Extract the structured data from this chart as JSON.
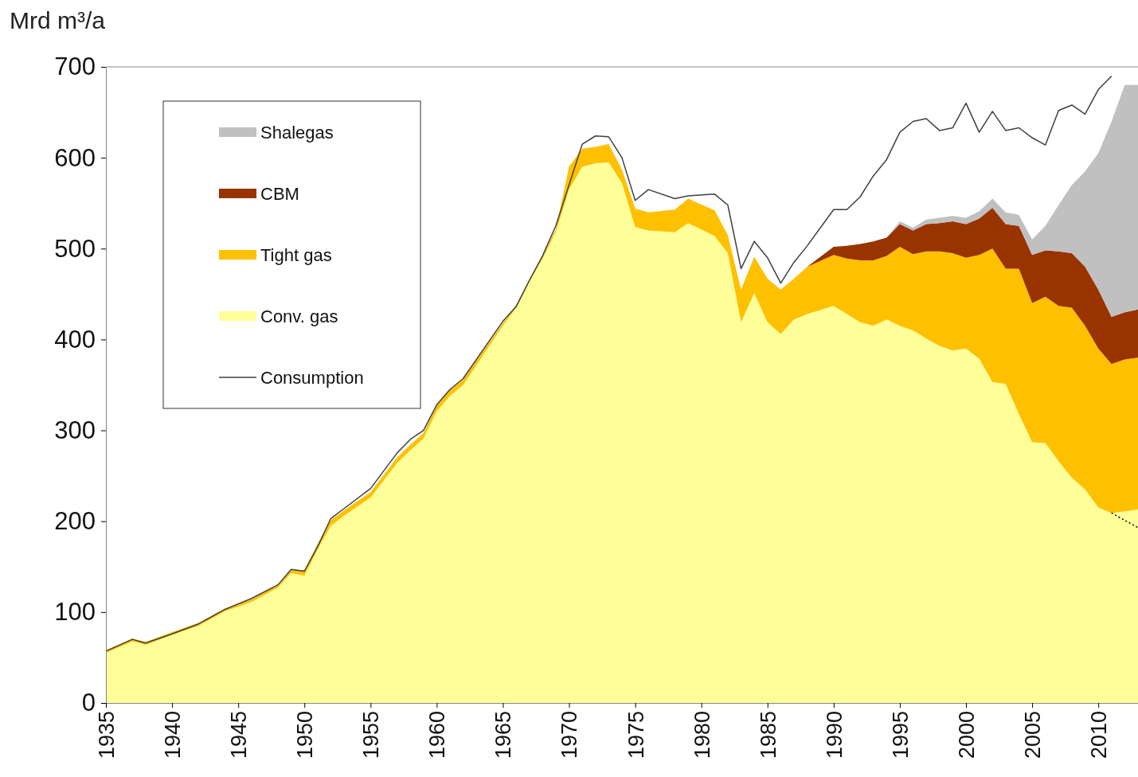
{
  "chart_data": {
    "type": "area",
    "stacked": true,
    "ylabel": "Mrd m³/a",
    "x": [
      1935,
      1937,
      1938,
      1940,
      1942,
      1944,
      1946,
      1948,
      1949,
      1950,
      1951,
      1952,
      1953,
      1955,
      1957,
      1958,
      1959,
      1960,
      1961,
      1962,
      1965,
      1966,
      1967,
      1968,
      1969,
      1970,
      1971,
      1972,
      1973,
      1974,
      1975,
      1976,
      1978,
      1979,
      1981,
      1982,
      1983,
      1984,
      1985,
      1986,
      1987,
      1988,
      1990,
      1991,
      1992,
      1993,
      1994,
      1995,
      1996,
      1997,
      1998,
      1999,
      2000,
      2001,
      2002,
      2003,
      2004,
      2005,
      2006,
      2007,
      2008,
      2009,
      2010,
      2011,
      2012,
      2013
    ],
    "series": [
      {
        "name": "Conv. gas",
        "color": "#ffff99",
        "values": [
          55,
          68,
          64,
          75,
          85,
          101,
          111,
          127,
          143,
          140,
          169,
          195,
          206,
          226,
          264,
          278,
          291,
          321,
          338,
          350,
          415,
          435,
          463,
          489,
          518,
          565,
          590,
          594,
          595,
          572,
          524,
          520,
          518,
          528,
          514,
          495,
          419,
          451,
          419,
          406,
          422,
          428,
          437,
          428,
          419,
          415,
          422,
          415,
          410,
          401,
          393,
          388,
          390,
          379,
          353,
          351,
          318,
          287,
          286,
          266,
          248,
          235,
          215,
          209,
          211,
          213
        ]
      },
      {
        "name": "Tight gas",
        "color": "#ffc000",
        "type": "area",
        "values": [
          3,
          3,
          3,
          3,
          3,
          3,
          3,
          3,
          3,
          6,
          6,
          6,
          6,
          6,
          6,
          6,
          6,
          6,
          6,
          6,
          3,
          3,
          3,
          3,
          3,
          25,
          20,
          18,
          20,
          15,
          20,
          20,
          25,
          27,
          28,
          20,
          36,
          40,
          48,
          49,
          45,
          52,
          56,
          61,
          68,
          72,
          70,
          87,
          84,
          96,
          104,
          107,
          100,
          114,
          147,
          127,
          160,
          153,
          161,
          171,
          187,
          180,
          175,
          164,
          167,
          167
        ]
      },
      {
        "name": "CBM",
        "color": "#993300",
        "values": [
          0,
          0,
          0,
          0,
          0,
          0,
          0,
          0,
          0,
          0,
          0,
          0,
          0,
          0,
          0,
          0,
          0,
          0,
          0,
          0,
          0,
          0,
          0,
          0,
          0,
          0,
          0,
          0,
          0,
          0,
          0,
          0,
          0,
          0,
          0,
          0,
          0,
          0,
          0,
          0,
          0,
          0,
          9,
          14,
          18,
          21,
          20,
          25,
          26,
          30,
          31,
          35,
          37,
          40,
          45,
          49,
          47,
          53,
          51,
          60,
          60,
          65,
          65,
          52,
          52,
          53
        ]
      },
      {
        "name": "Shalegas",
        "color": "#c0c0c0",
        "values": [
          0,
          0,
          0,
          0,
          0,
          0,
          0,
          0,
          0,
          0,
          0,
          0,
          0,
          0,
          0,
          0,
          0,
          0,
          0,
          0,
          0,
          0,
          0,
          0,
          0,
          0,
          0,
          0,
          0,
          0,
          0,
          0,
          0,
          0,
          0,
          0,
          0,
          0,
          0,
          0,
          0,
          0,
          0,
          0,
          0,
          0,
          0,
          3,
          3,
          5,
          6,
          6,
          7,
          8,
          10,
          13,
          12,
          17,
          27,
          51,
          75,
          105,
          150,
          215,
          250,
          247
        ]
      },
      {
        "name": "Consumption",
        "type": "line",
        "color": "#404040",
        "values": [
          57,
          70,
          66,
          76,
          87,
          103,
          115,
          130,
          147,
          145,
          172,
          203,
          214,
          236,
          275,
          290,
          300,
          328,
          345,
          357,
          420,
          436,
          465,
          492,
          525,
          570,
          615,
          624,
          623,
          600,
          553,
          565,
          555,
          558,
          560,
          548,
          478,
          508,
          490,
          462,
          485,
          503,
          543,
          543,
          557,
          580,
          598,
          628,
          640,
          643,
          630,
          633,
          660,
          628,
          651,
          630,
          633,
          622,
          614,
          652,
          658,
          648,
          675,
          690,
          null,
          null
        ]
      },
      {
        "type": "line",
        "color": "#000000",
        "line_style": "dotted",
        "x": [
          2011,
          2013
        ],
        "values": [
          209,
          193
        ]
      }
    ],
    "xlim": [
      1935,
      2013
    ],
    "xticks": [
      1935,
      1940,
      1945,
      1950,
      1955,
      1960,
      1965,
      1970,
      1975,
      1980,
      1985,
      1990,
      1995,
      2000,
      2005,
      2010
    ],
    "ylim": [
      0,
      700
    ],
    "yticks": [
      0,
      100,
      200,
      300,
      400,
      500,
      600,
      700
    ],
    "legend": "top left",
    "grid": false
  }
}
